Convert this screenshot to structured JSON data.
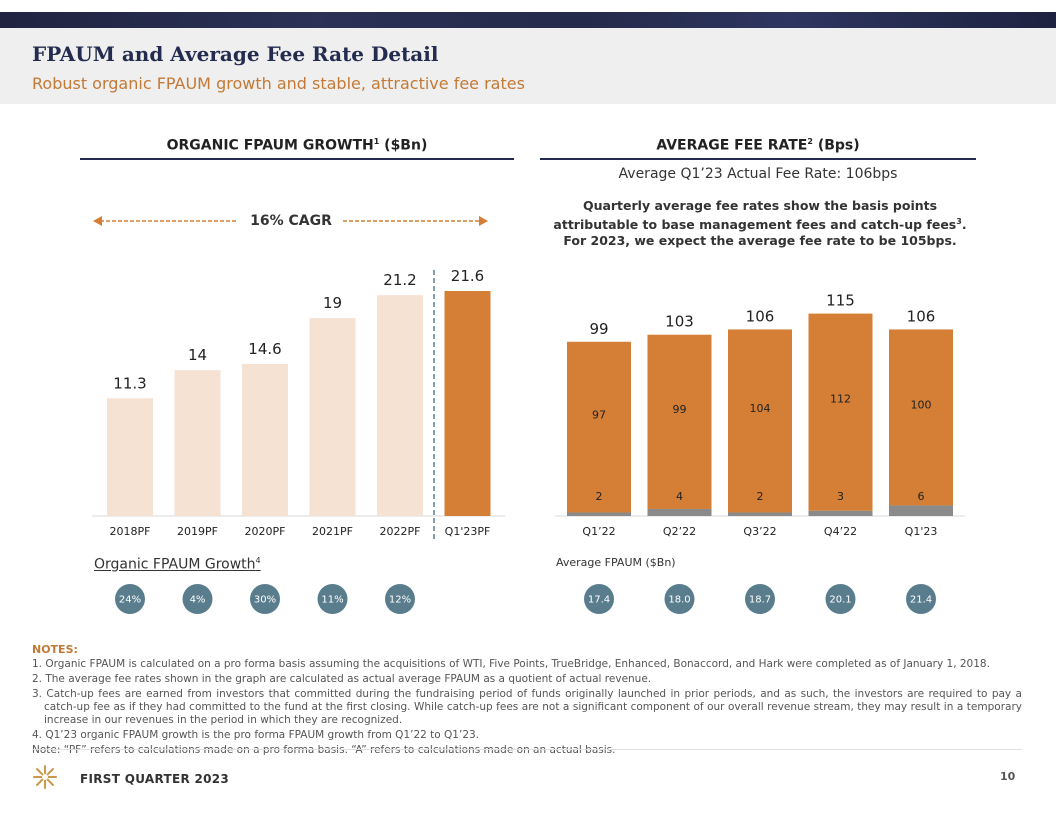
{
  "header": {
    "title": "FPAUM and Average Fee Rate Detail",
    "subtitle": "Robust organic FPAUM growth and stable, attractive fee rates"
  },
  "left_panel": {
    "title_main": "ORGANIC FPAUM GROWTH",
    "title_sup": "1",
    "title_unit": " ($Bn)",
    "cagr_label": "16% CAGR",
    "growth_title_main": "Organic FPAUM Growth",
    "growth_title_sup": "4"
  },
  "right_panel": {
    "title_main": "AVERAGE FEE RATE",
    "title_sup": "2",
    "title_unit": " (Bps)",
    "subtitle": "Average Q1’23 Actual Fee Rate: 106bps",
    "desc_main": "Quarterly average fee rates show the basis points attributable to base management fees and catch-up fees",
    "desc_sup": "3",
    "desc_tail": ". For 2023, we expect the average fee rate to be 105bps.",
    "fpaum_title": "Average FPAUM ($Bn)"
  },
  "chart_data": [
    {
      "type": "bar",
      "categories": [
        "2018PF",
        "2019PF",
        "2020PF",
        "2021PF",
        "2022PF",
        "Q1'23PF"
      ],
      "values": [
        11.3,
        14,
        14.6,
        19,
        21.2,
        21.6
      ],
      "ylim": [
        0,
        24
      ],
      "growth_rates": [
        "24%",
        "4%",
        "30%",
        "11%",
        "12%"
      ],
      "colors": {
        "historical": "#f6e2d3",
        "current": "#d47f35",
        "divider": "#5a7d99"
      }
    },
    {
      "type": "bar",
      "stacked": true,
      "categories": [
        "Q1’22",
        "Q2’22",
        "Q3’22",
        "Q4’22",
        "Q1'23"
      ],
      "totals": [
        99,
        103,
        106,
        115,
        106
      ],
      "series": [
        {
          "values": [
            97,
            99,
            104,
            112,
            100
          ],
          "color": "#d47f35"
        },
        {
          "values": [
            2,
            4,
            2,
            3,
            6
          ],
          "color": "#8a8a8a"
        }
      ],
      "ylim": [
        0,
        125
      ],
      "average_fpaum": [
        "17.4",
        "18.0",
        "18.7",
        "20.1",
        "21.4"
      ],
      "colors": {
        "bubble": "#5a7d8e"
      }
    }
  ],
  "notes": {
    "heading": "NOTES:",
    "items": [
      "1. Organic FPAUM is calculated on a pro forma basis assuming the acquisitions of WTI, Five Points, TrueBridge, Enhanced, Bonaccord, and Hark were completed as of January 1, 2018.",
      "2. The average fee rates shown in the graph are calculated as actual average FPAUM as a quotient of actual revenue.",
      "3. Catch-up fees are earned from investors that committed during the fundraising period of funds originally launched in prior periods, and as such, the investors are required to pay a catch-up fee as if they had committed to the fund at the first closing. While catch-up fees are not a significant component of our overall revenue stream, they may result in a temporary increase in our revenues in the period in which they are recognized.",
      "4. Q1’23 organic FPAUM growth is the pro forma FPAUM growth from Q1’22 to Q1’23.",
      "Note: “PF” refers to calculations made on a pro forma basis. “A” refers to calculations made on an actual basis."
    ]
  },
  "footer": {
    "label": "FIRST QUARTER 2023",
    "page": "10"
  }
}
